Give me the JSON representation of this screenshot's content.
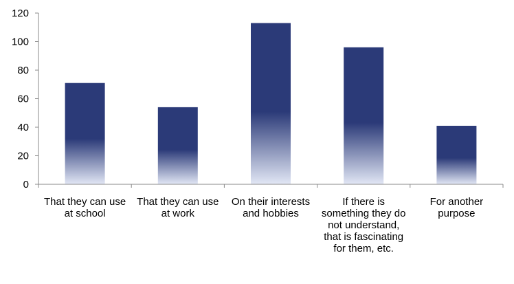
{
  "chart_data": {
    "type": "bar",
    "categories": [
      "That they can use at school",
      "That they can use at work",
      "On their interests and hobbies",
      "If there is something they do not understand, that is fascinating for them, etc.",
      "For another purpose"
    ],
    "values": [
      71,
      54,
      113,
      96,
      41
    ],
    "yticks": [
      "0",
      "20",
      "40",
      "60",
      "80",
      "100",
      "120"
    ],
    "ylim": [
      0,
      120
    ],
    "grid": false,
    "legend": "none",
    "colors": {
      "bar_top": "#2b3a78",
      "bar_bottom": "#e2e7f5",
      "axis": "#888888"
    }
  }
}
